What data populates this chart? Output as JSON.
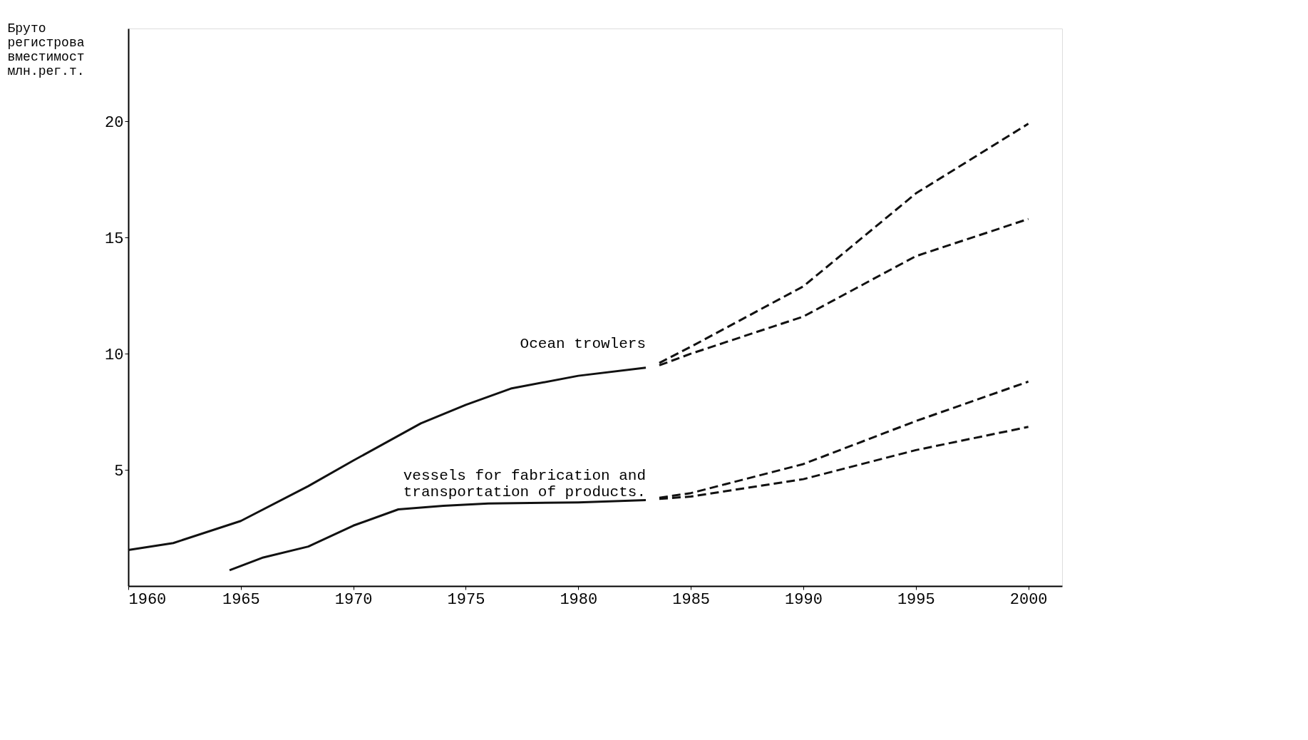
{
  "chart_data": {
    "type": "line",
    "ylabel": "Бруто\nрегистрова\nвместимост\nмлн.рег.т.",
    "xlim": [
      1960,
      2001.5
    ],
    "ylim": [
      0,
      24
    ],
    "xticks": [
      1960,
      1965,
      1970,
      1975,
      1980,
      1985,
      1990,
      1995,
      2000
    ],
    "yticks": [
      5,
      10,
      15,
      20
    ],
    "grid": false,
    "series": [
      {
        "name": "Ocean trowlers",
        "color": "#111111",
        "line_style": "solid",
        "x": [
          1960,
          1962,
          1965,
          1968,
          1970,
          1973,
          1975,
          1977,
          1980,
          1983
        ],
        "values": [
          1.55,
          1.85,
          2.8,
          4.3,
          5.4,
          7.0,
          7.8,
          8.5,
          9.05,
          9.4
        ]
      },
      {
        "color": "#111111",
        "line_style": "dashed",
        "x": [
          1983.6,
          1985,
          1990,
          1995,
          2000
        ],
        "values": [
          9.6,
          10.3,
          12.9,
          16.9,
          19.9
        ]
      },
      {
        "color": "#111111",
        "line_style": "dashed",
        "x": [
          1983.6,
          1985,
          1990,
          1995,
          2000
        ],
        "values": [
          9.5,
          10.0,
          11.6,
          14.2,
          15.8
        ]
      },
      {
        "name": "vessels for fabrication and\ntransportation of products.",
        "color": "#111111",
        "line_style": "solid",
        "x": [
          1964.5,
          1966,
          1968,
          1970,
          1972,
          1974,
          1976,
          1980,
          1983
        ],
        "values": [
          0.68,
          1.23,
          1.7,
          2.6,
          3.3,
          3.45,
          3.55,
          3.6,
          3.7
        ]
      },
      {
        "color": "#111111",
        "line_style": "dashed",
        "x": [
          1983.6,
          1985,
          1990,
          1995,
          2000
        ],
        "values": [
          3.8,
          4.0,
          5.25,
          7.1,
          8.8
        ]
      },
      {
        "color": "#111111",
        "line_style": "dashed",
        "x": [
          1983.6,
          1985,
          1990,
          1995,
          2000
        ],
        "values": [
          3.75,
          3.85,
          4.6,
          5.85,
          6.85
        ]
      }
    ]
  }
}
